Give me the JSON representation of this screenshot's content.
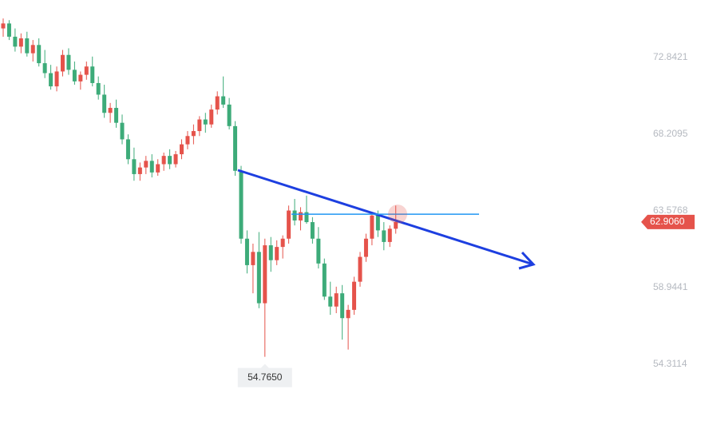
{
  "chart_data": {
    "type": "candlestick",
    "up_color": "#e5534b",
    "down_color": "#3dab79",
    "ylim": [
      50.403,
      76.317
    ],
    "yticks": [
      72.8421,
      68.2095,
      63.5768,
      58.9441,
      54.3114
    ],
    "open": [
      74.6,
      74.9,
      74.1,
      73.5,
      74.0,
      73.1,
      73.6,
      72.5,
      71.9,
      71.1,
      72.0,
      73.0,
      72.1,
      71.4,
      71.8,
      72.3,
      71.3,
      70.6,
      69.5,
      69.8,
      68.9,
      67.9,
      66.7,
      65.8,
      66.2,
      66.6,
      65.9,
      66.4,
      66.9,
      66.4,
      67.0,
      67.6,
      68.1,
      68.4,
      69.1,
      68.8,
      69.7,
      70.5,
      70.0,
      68.7,
      66.0,
      61.9,
      60.3,
      61.1,
      58.0,
      61.5,
      60.6,
      61.4,
      61.9,
      63.6,
      63.0,
      63.5,
      62.9,
      61.9,
      60.4,
      58.4,
      57.8,
      58.6,
      57.1,
      57.6,
      59.3,
      60.8,
      61.9,
      63.3,
      62.4,
      61.7,
      62.5
    ],
    "high": [
      75.2,
      75.1,
      74.6,
      74.3,
      74.4,
      73.9,
      74.0,
      73.3,
      72.4,
      72.3,
      73.3,
      73.4,
      72.6,
      72.0,
      72.6,
      72.9,
      71.7,
      71.2,
      70.1,
      70.3,
      69.4,
      68.2,
      67.4,
      66.5,
      66.9,
      67.0,
      66.7,
      67.1,
      67.3,
      67.2,
      67.9,
      68.4,
      68.8,
      69.3,
      69.5,
      70.0,
      70.8,
      71.7,
      70.4,
      69.0,
      66.3,
      62.4,
      61.6,
      62.3,
      61.9,
      62.0,
      61.8,
      62.1,
      63.9,
      64.3,
      63.8,
      64.5,
      63.2,
      62.6,
      60.7,
      59.3,
      59.0,
      59.1,
      57.9,
      59.6,
      61.1,
      62.2,
      63.5,
      63.6,
      62.9,
      62.7,
      63.9
    ],
    "low": [
      74.1,
      73.9,
      73.2,
      73.1,
      72.9,
      72.6,
      72.3,
      71.6,
      70.9,
      70.8,
      71.7,
      71.8,
      71.2,
      70.9,
      71.5,
      71.1,
      70.3,
      69.2,
      68.9,
      68.6,
      67.6,
      66.4,
      65.4,
      65.4,
      65.8,
      65.6,
      65.7,
      66.0,
      66.1,
      66.2,
      66.7,
      67.3,
      67.6,
      68.1,
      68.3,
      68.6,
      69.4,
      69.8,
      68.5,
      65.7,
      61.6,
      59.8,
      58.6,
      57.7,
      54.765,
      59.9,
      60.3,
      60.7,
      61.6,
      62.7,
      62.4,
      62.8,
      61.6,
      60.1,
      58.2,
      57.3,
      57.4,
      55.8,
      55.2,
      57.3,
      59.0,
      60.5,
      61.5,
      62.0,
      61.2,
      61.4,
      62.2
    ],
    "close": [
      74.9,
      74.1,
      73.5,
      74.0,
      73.1,
      73.6,
      72.5,
      71.9,
      71.1,
      72.0,
      73.0,
      72.1,
      71.4,
      71.8,
      72.3,
      71.3,
      70.6,
      69.5,
      69.8,
      68.9,
      67.9,
      66.7,
      65.8,
      66.2,
      66.6,
      65.9,
      66.4,
      66.9,
      66.4,
      67.0,
      67.6,
      68.1,
      68.4,
      69.1,
      68.8,
      69.7,
      70.5,
      70.0,
      68.7,
      66.0,
      61.9,
      60.3,
      61.1,
      58.0,
      61.5,
      60.6,
      61.4,
      61.9,
      63.6,
      63.0,
      63.5,
      62.9,
      61.9,
      60.4,
      58.4,
      57.8,
      58.6,
      57.1,
      57.6,
      59.3,
      60.8,
      61.9,
      63.3,
      62.4,
      61.7,
      62.5,
      62.906
    ],
    "horizontal_line": 63.38,
    "last_price": {
      "value": 62.906,
      "label": "62.9060"
    },
    "min_label": {
      "value": 54.765,
      "label": "54.7650"
    }
  }
}
